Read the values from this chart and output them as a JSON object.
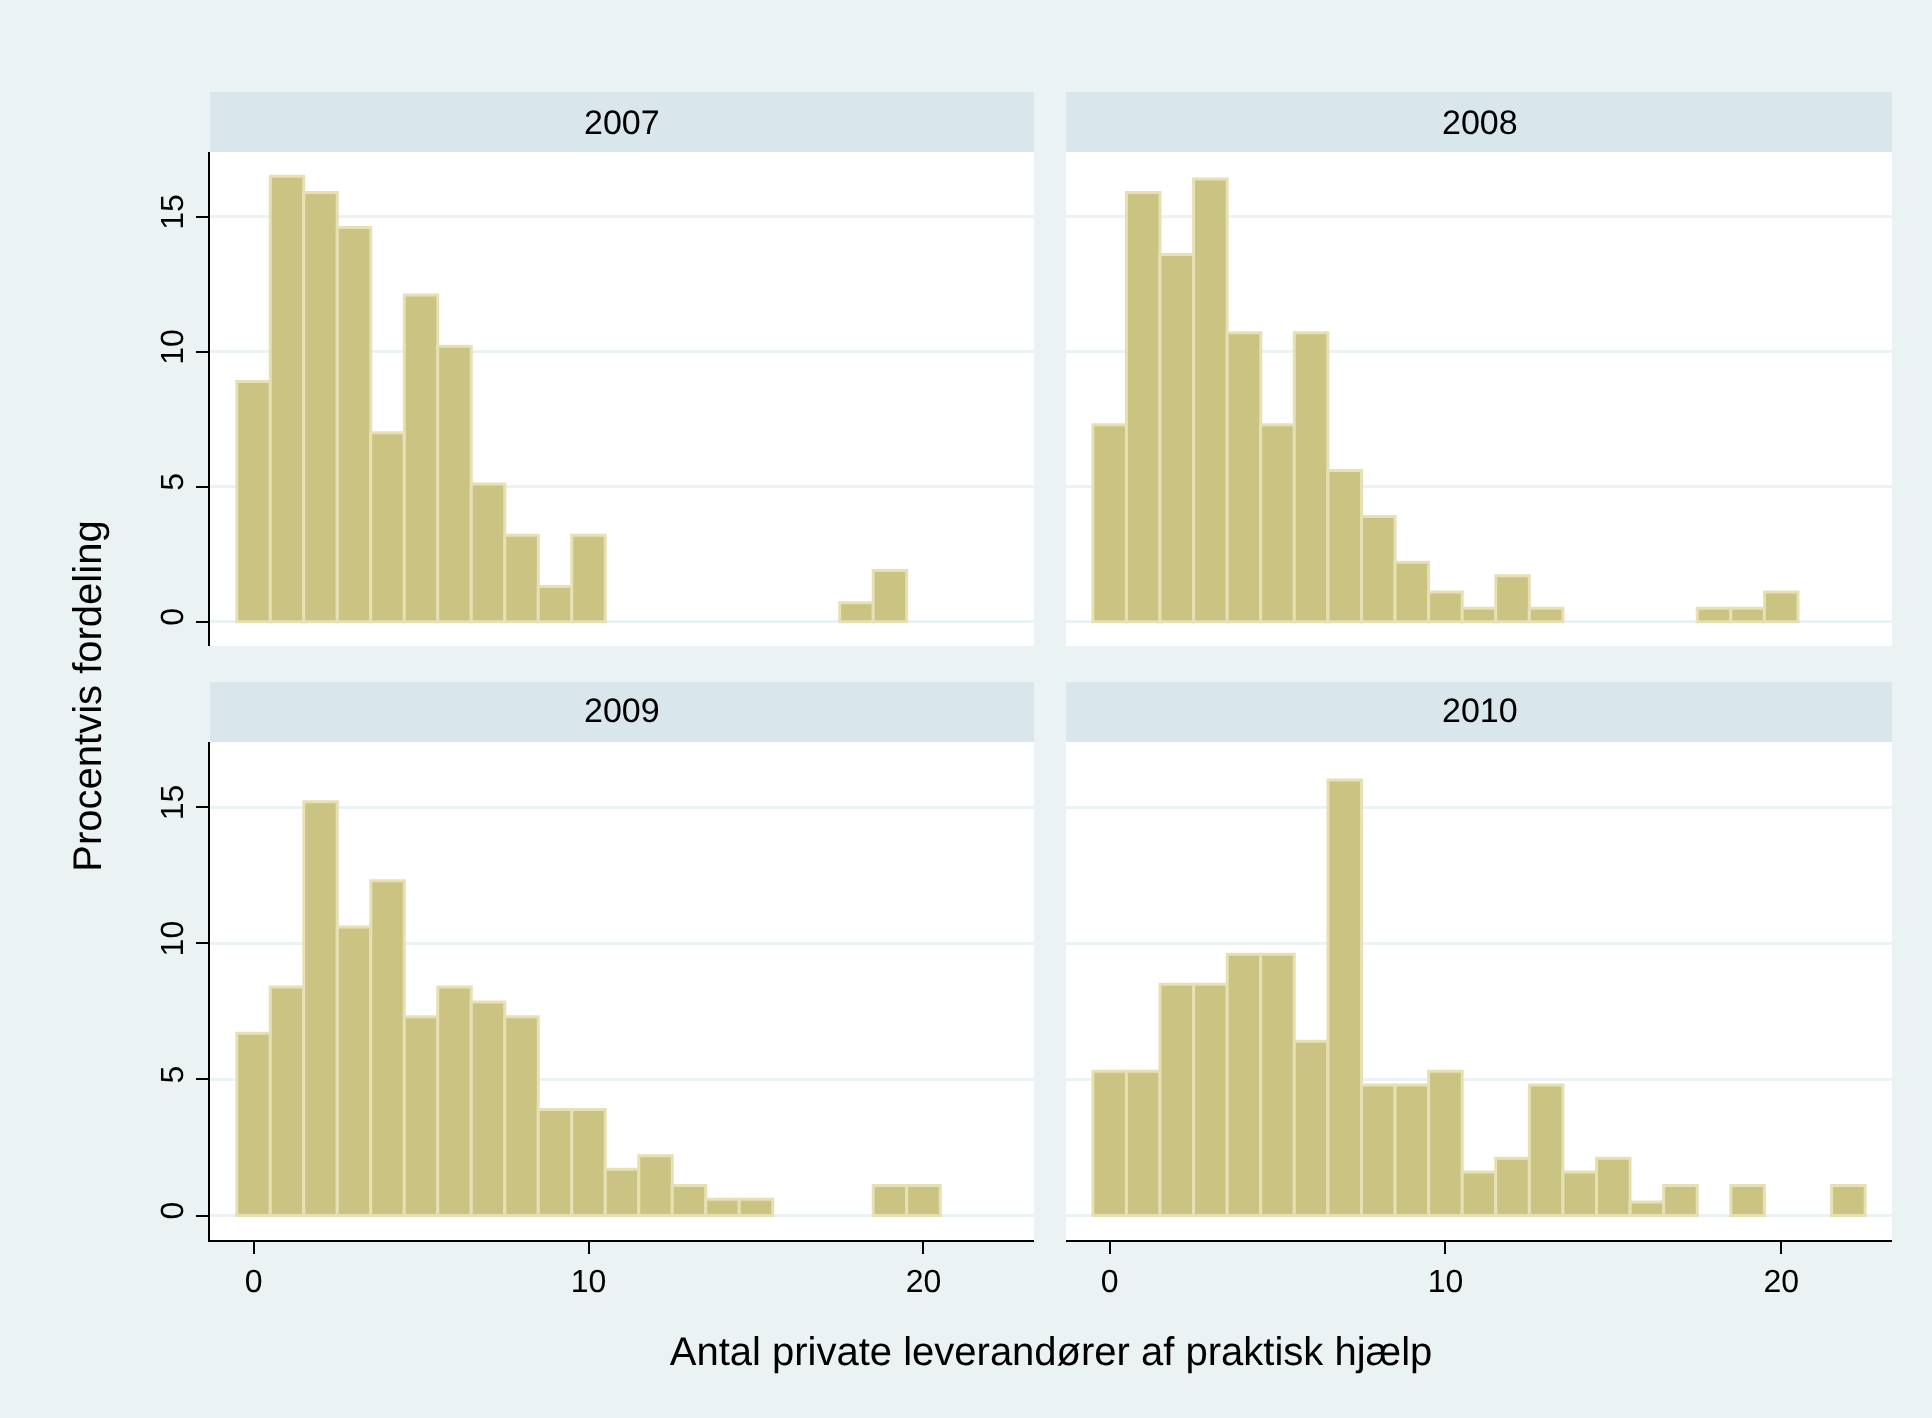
{
  "chart_data": [
    {
      "type": "histogram",
      "title": "2007",
      "ylabel": "Procentvis fordeling",
      "color": "#cbc382",
      "bins": [
        -0.5,
        0.5,
        1.5,
        2.5,
        3.5,
        4.5,
        5.5,
        6.5,
        7.5,
        8.5,
        9.5,
        10.5,
        11.5,
        12.5,
        13.5,
        14.5,
        15.5,
        16.5,
        17.5,
        18.5,
        19.5
      ],
      "values": [
        8.9,
        16.5,
        15.9,
        14.6,
        7.0,
        12.1,
        10.2,
        5.1,
        3.2,
        1.3,
        3.2,
        0,
        0,
        0,
        0,
        0,
        0,
        0,
        0.7,
        1.9
      ],
      "xlim": [
        -1.3,
        23.3
      ],
      "ylim": [
        -0.9,
        17.4
      ],
      "xticks": [
        0,
        10,
        20
      ],
      "yticks": [
        0,
        5,
        10,
        15
      ],
      "grid": "y",
      "tick_labels": "y"
    },
    {
      "type": "histogram",
      "title": "2008",
      "color": "#cbc382",
      "bins": [
        -0.5,
        0.5,
        1.5,
        2.5,
        3.5,
        4.5,
        5.5,
        6.5,
        7.5,
        8.5,
        9.5,
        10.5,
        11.5,
        12.5,
        13.5,
        14.5,
        15.5,
        16.5,
        17.5,
        18.5,
        19.5,
        20.5
      ],
      "values": [
        7.3,
        15.9,
        13.6,
        16.4,
        10.7,
        7.3,
        10.7,
        5.6,
        3.9,
        2.2,
        1.1,
        0.5,
        1.7,
        0.5,
        0,
        0,
        0,
        0,
        0.5,
        0.5,
        1.1
      ],
      "xlim": [
        -1.3,
        23.3
      ],
      "ylim": [
        -0.9,
        17.4
      ],
      "xticks": [
        0,
        10,
        20
      ],
      "yticks": [
        0,
        5,
        10,
        15
      ],
      "grid": "y",
      "tick_labels": false
    },
    {
      "type": "histogram",
      "title": "2009",
      "xlabel": "Antal private leverandører af praktisk hjælp",
      "color": "#cbc382",
      "bins": [
        -0.5,
        0.5,
        1.5,
        2.5,
        3.5,
        4.5,
        5.5,
        6.5,
        7.5,
        8.5,
        9.5,
        10.5,
        11.5,
        12.5,
        13.5,
        14.5,
        15.5,
        16.5,
        17.5,
        18.5,
        19.5,
        20.5
      ],
      "values": [
        6.7,
        8.4,
        15.2,
        10.6,
        12.3,
        7.3,
        8.4,
        7.85,
        7.3,
        3.9,
        3.9,
        1.7,
        2.2,
        1.1,
        0.6,
        0.6,
        0,
        0,
        0,
        1.1,
        1.1
      ],
      "xlim": [
        -1.3,
        23.3
      ],
      "ylim": [
        -0.9,
        17.4
      ],
      "xticks": [
        0,
        10,
        20
      ],
      "yticks": [
        0,
        5,
        10,
        15
      ],
      "grid": "y"
    },
    {
      "type": "histogram",
      "title": "2010",
      "color": "#cbc382",
      "bins": [
        -0.5,
        0.5,
        1.5,
        2.5,
        3.5,
        4.5,
        5.5,
        6.5,
        7.5,
        8.5,
        9.5,
        10.5,
        11.5,
        12.5,
        13.5,
        14.5,
        15.5,
        16.5,
        17.5,
        18.5,
        19.5,
        20.5,
        21.5,
        22.5
      ],
      "values": [
        5.3,
        5.3,
        8.5,
        8.5,
        9.6,
        9.6,
        6.4,
        16.0,
        4.8,
        4.8,
        5.3,
        1.6,
        2.1,
        4.8,
        1.6,
        2.1,
        0.5,
        1.1,
        0,
        1.1,
        0,
        0,
        1.1
      ],
      "xlim": [
        -1.3,
        23.3
      ],
      "ylim": [
        -0.9,
        17.4
      ],
      "xticks": [
        0,
        10,
        20
      ],
      "yticks": [
        0,
        5,
        10,
        15
      ],
      "grid": "y",
      "tick_labels": "x"
    }
  ]
}
